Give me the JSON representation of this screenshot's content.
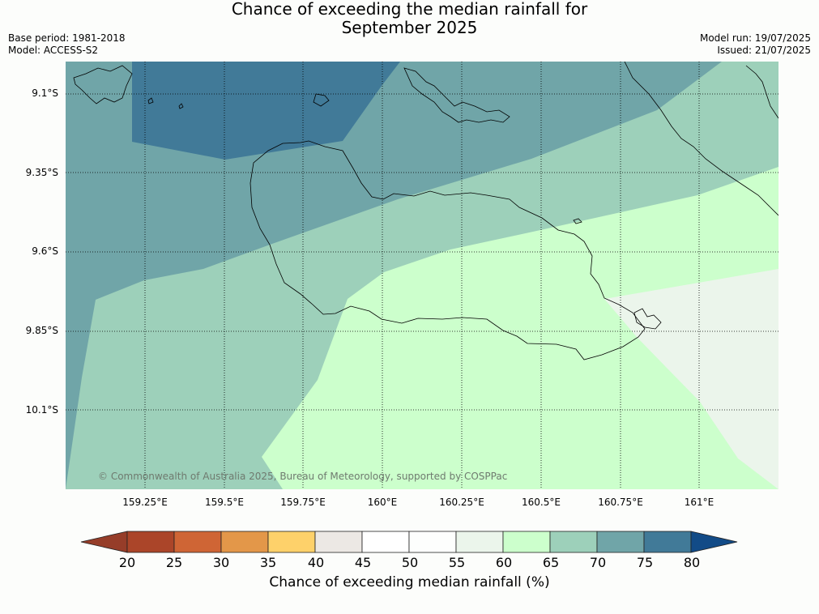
{
  "title": {
    "line1": "Chance of exceeding the median rainfall for",
    "line2": "September 2025"
  },
  "info_left": {
    "base_period": "Base period: 1981-2018",
    "model": "Model: ACCESS-S2"
  },
  "info_right": {
    "model_run": "Model run: 19/07/2025",
    "issued": "Issued: 21/07/2025"
  },
  "map": {
    "copyright": "© Commonwealth of Australia 2025, Bureau of Meteorology, supported by COSPPac",
    "lat_labels": [
      "9.1°S",
      "9.35°S",
      "9.6°S",
      "9.85°S",
      "10.1°S"
    ],
    "lon_labels": [
      "159.25°E",
      "159.5°E",
      "159.75°E",
      "160°E",
      "160.25°E",
      "160.5°E",
      "160.75°E",
      "161°E"
    ],
    "region_colors": {
      "60_65": "#ccffcc",
      "65_70": "#9dd0ba",
      "70_75": "#70a5a8",
      "75_80": "#417a98",
      "55_60": "#ebf5eb"
    }
  },
  "colorbar": {
    "title": "Chance of exceeding median rainfall (%)",
    "labels": [
      "20",
      "25",
      "30",
      "35",
      "40",
      "45",
      "50",
      "55",
      "60",
      "65",
      "70",
      "75",
      "80"
    ],
    "colors": [
      "#ab4529",
      "#cf6535",
      "#e39749",
      "#fed16a",
      "#ece8e4",
      "#ffffff",
      "#fdfefd",
      "#ebf5eb",
      "#ccffcc",
      "#9dd0ba",
      "#70a5a8",
      "#417a98"
    ],
    "under_color": "#963d29",
    "over_color": "#124b87"
  }
}
